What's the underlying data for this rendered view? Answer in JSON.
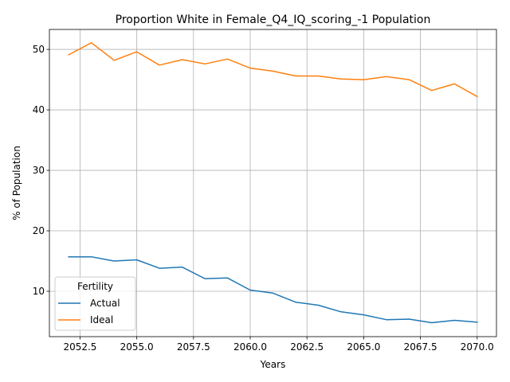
{
  "chart_data": {
    "type": "line",
    "title": "Proportion White in Female_Q4_IQ_scoring_-1 Population",
    "xlabel": "Years",
    "ylabel": "% of Population",
    "xlim": [
      2051.15,
      2070.85
    ],
    "ylim": [
      2.5,
      53.3
    ],
    "x": [
      2052,
      2053,
      2054,
      2055,
      2056,
      2057,
      2058,
      2059,
      2060,
      2061,
      2062,
      2063,
      2064,
      2065,
      2066,
      2067,
      2068,
      2069,
      2070
    ],
    "x_ticks": [
      2052.5,
      2055.0,
      2057.5,
      2060.0,
      2062.5,
      2065.0,
      2067.5,
      2070.0
    ],
    "x_tick_labels": [
      "2052.5",
      "2055.0",
      "2057.5",
      "2060.0",
      "2062.5",
      "2065.0",
      "2067.5",
      "2070.0"
    ],
    "y_ticks": [
      10,
      20,
      30,
      40,
      50
    ],
    "y_tick_labels": [
      "10",
      "20",
      "30",
      "40",
      "50"
    ],
    "grid": true,
    "legend": {
      "title": "Fertility",
      "placement": "lower-left"
    },
    "series": [
      {
        "name": "Actual",
        "color": "#1f77b4",
        "values": [
          15.7,
          15.7,
          15.0,
          15.2,
          13.8,
          14.0,
          12.1,
          12.2,
          10.2,
          9.7,
          8.2,
          7.7,
          6.6,
          6.1,
          5.3,
          5.4,
          4.8,
          5.2,
          4.9
        ]
      },
      {
        "name": "Ideal",
        "color": "#ff7f0e",
        "values": [
          49.1,
          51.1,
          48.2,
          49.6,
          47.4,
          48.3,
          47.6,
          48.4,
          46.9,
          46.4,
          45.6,
          45.6,
          45.1,
          45.0,
          45.5,
          45.0,
          43.2,
          44.3,
          42.2
        ]
      }
    ]
  }
}
